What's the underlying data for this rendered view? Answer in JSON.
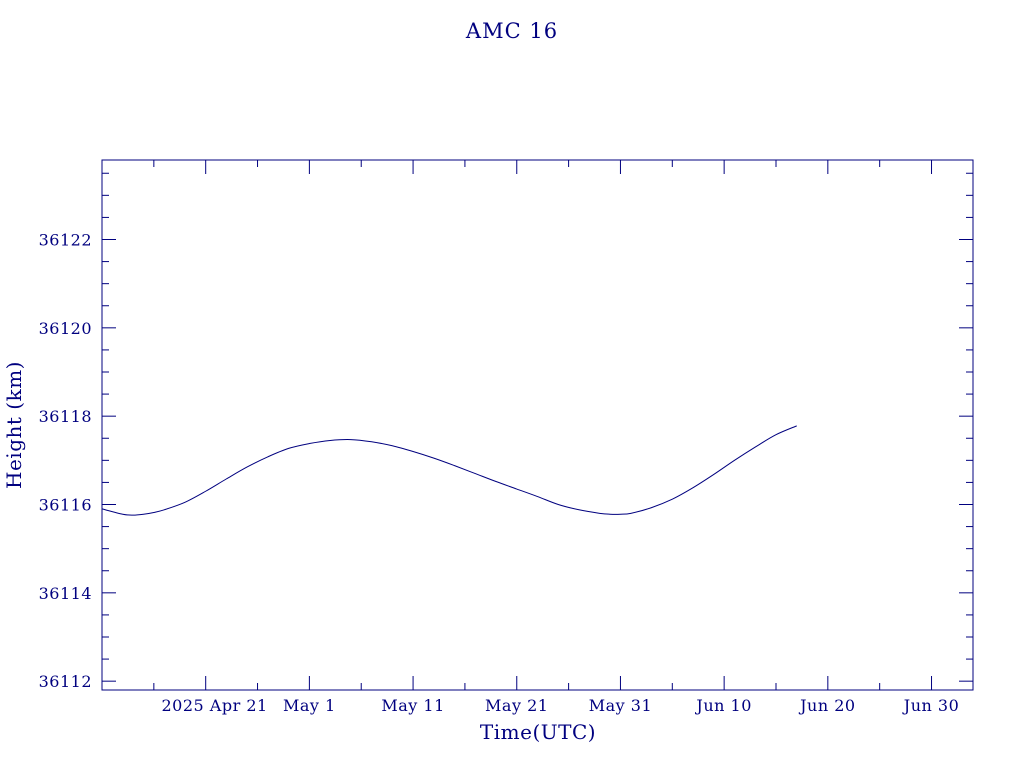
{
  "colors": {
    "ink": "#00007f",
    "background": "#ffffff"
  },
  "chart_data": {
    "type": "line",
    "title": "AMC 16",
    "xlabel": "Time(UTC)",
    "ylabel": "Height (km)",
    "x_axis": "date",
    "xlim": [
      "2025-04-11",
      "2025-07-04"
    ],
    "ylim": [
      36111.8,
      36123.8
    ],
    "x_ticks": [
      {
        "date": "2025-04-21",
        "label": "2025 Apr 21"
      },
      {
        "date": "2025-05-01",
        "label": "May  1"
      },
      {
        "date": "2025-05-11",
        "label": "May 11"
      },
      {
        "date": "2025-05-21",
        "label": "May 21"
      },
      {
        "date": "2025-05-31",
        "label": "May 31"
      },
      {
        "date": "2025-06-10",
        "label": "Jun 10"
      },
      {
        "date": "2025-06-20",
        "label": "Jun 20"
      },
      {
        "date": "2025-06-30",
        "label": "Jun 30"
      }
    ],
    "x_minor_ticks": [
      "2025-04-16",
      "2025-04-26",
      "2025-05-06",
      "2025-05-16",
      "2025-05-26",
      "2025-06-05",
      "2025-06-15",
      "2025-06-25"
    ],
    "y_ticks": [
      {
        "value": 36112,
        "label": "36112"
      },
      {
        "value": 36114,
        "label": "36114"
      },
      {
        "value": 36116,
        "label": "36116"
      },
      {
        "value": 36118,
        "label": "36118"
      },
      {
        "value": 36120,
        "label": "36120"
      },
      {
        "value": 36122,
        "label": "36122"
      }
    ],
    "y_minor_step": 0.5,
    "grid": false,
    "series": [
      {
        "color": "#00007f",
        "x": [
          "2025-04-11",
          "2025-04-13",
          "2025-04-14",
          "2025-04-15",
          "2025-04-16",
          "2025-04-17",
          "2025-04-19",
          "2025-04-21",
          "2025-04-23",
          "2025-04-25",
          "2025-04-27",
          "2025-04-29",
          "2025-05-01",
          "2025-05-03",
          "2025-05-05",
          "2025-05-07",
          "2025-05-09",
          "2025-05-11",
          "2025-05-13",
          "2025-05-15",
          "2025-05-17",
          "2025-05-19",
          "2025-05-21",
          "2025-05-23",
          "2025-05-25",
          "2025-05-27",
          "2025-05-29",
          "2025-05-30",
          "2025-05-31",
          "2025-06-01",
          "2025-06-03",
          "2025-06-05",
          "2025-06-07",
          "2025-06-09",
          "2025-06-11",
          "2025-06-13",
          "2025-06-15",
          "2025-06-17"
        ],
        "y": [
          36115.9,
          36115.78,
          36115.76,
          36115.78,
          36115.82,
          36115.88,
          36116.05,
          36116.3,
          36116.58,
          36116.85,
          36117.08,
          36117.27,
          36117.38,
          36117.45,
          36117.47,
          36117.42,
          36117.33,
          36117.2,
          36117.05,
          36116.88,
          36116.7,
          36116.52,
          36116.35,
          36116.18,
          36116.0,
          36115.88,
          36115.8,
          36115.78,
          36115.78,
          36115.8,
          36115.93,
          36116.12,
          36116.38,
          36116.68,
          36117.0,
          36117.3,
          36117.58,
          36117.78
        ]
      }
    ]
  }
}
